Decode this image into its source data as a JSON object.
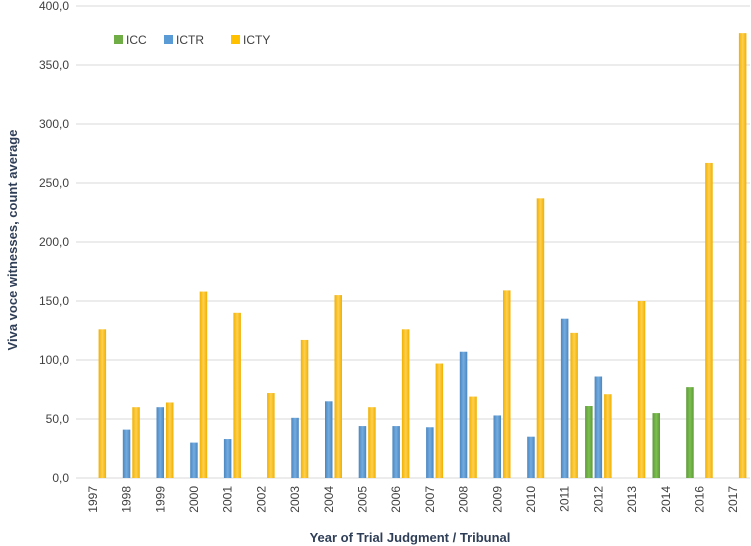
{
  "chart_data": {
    "type": "bar",
    "title": "",
    "xlabel": "Year of Trial Judgment / Tribunal",
    "ylabel": "Viva voce witnesses, count average",
    "ylim": [
      0,
      400
    ],
    "yticks": [
      "0,0",
      "50,0",
      "100,0",
      "150,0",
      "200,0",
      "250,0",
      "300,0",
      "350,0",
      "400,0"
    ],
    "grid": true,
    "legend_position": "top-left",
    "categories": [
      "1997",
      "1998",
      "1999",
      "2000",
      "2001",
      "2002",
      "2003",
      "2004",
      "2005",
      "2006",
      "2007",
      "2008",
      "2009",
      "2010",
      "2011",
      "2012",
      "2013",
      "2014",
      "2016",
      "2017"
    ],
    "series": [
      {
        "name": "ICC",
        "color": "#70ad47",
        "values": [
          null,
          null,
          null,
          null,
          null,
          null,
          null,
          null,
          null,
          null,
          null,
          null,
          null,
          null,
          null,
          61,
          null,
          55,
          77,
          null
        ]
      },
      {
        "name": "ICTR",
        "color": "#5b9bd5",
        "values": [
          null,
          41,
          60,
          30,
          33,
          null,
          51,
          65,
          44,
          44,
          43,
          107,
          53,
          35,
          135,
          86,
          null,
          null,
          null,
          null
        ]
      },
      {
        "name": "ICTY",
        "color": "#ffc000",
        "values": [
          126,
          60,
          64,
          158,
          140,
          72,
          117,
          155,
          60,
          126,
          97,
          69,
          159,
          237,
          123,
          71,
          150,
          null,
          267,
          377
        ]
      }
    ]
  }
}
